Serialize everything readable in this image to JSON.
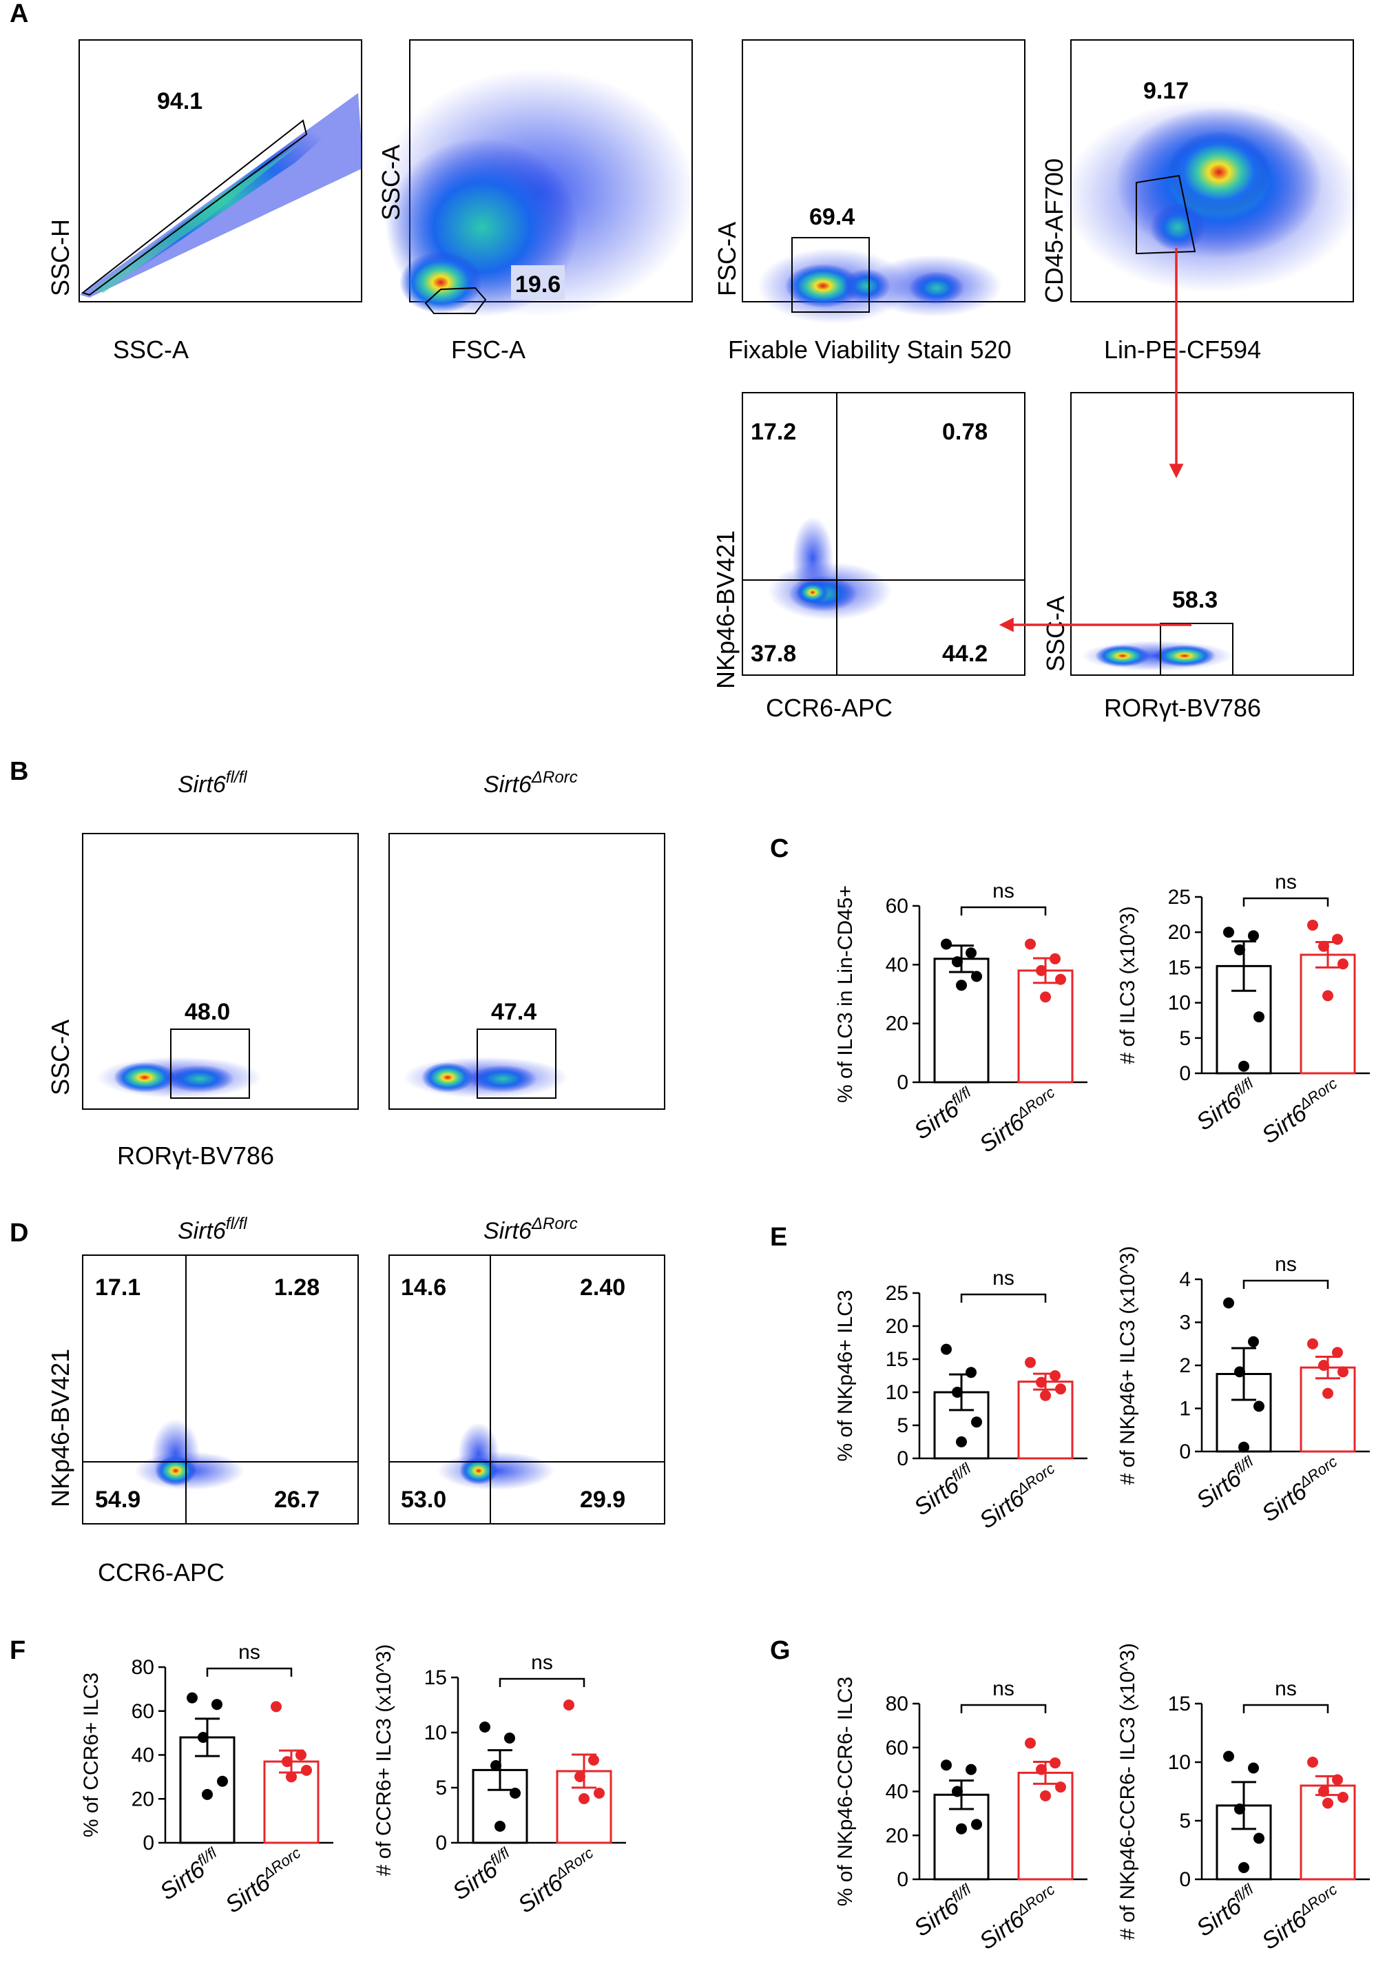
{
  "panel_letters": [
    "A",
    "B",
    "C",
    "D",
    "E",
    "F",
    "G"
  ],
  "groups": {
    "control": {
      "base": "Sirt6",
      "sup": "fl/fl",
      "color": "#000000"
    },
    "ko": {
      "base": "Sirt6",
      "sup": "ΔRorc",
      "color": "#e8262a"
    }
  },
  "gating": [
    {
      "id": "a1",
      "x_label": "SSC-A",
      "y_label": "SSC-H",
      "gates": [
        "94.1"
      ]
    },
    {
      "id": "a2",
      "x_label": "FSC-A",
      "y_label": "SSC-A",
      "gates": [
        "19.6"
      ]
    },
    {
      "id": "a3",
      "x_label": "Fixable Viability Stain 520",
      "y_label": "FSC-A",
      "gates": [
        "69.4"
      ]
    },
    {
      "id": "a4",
      "x_label": "Lin-PE-CF594",
      "y_label": "CD45-AF700",
      "gates": [
        "9.17"
      ]
    },
    {
      "id": "a5",
      "x_label": "CCR6-APC",
      "y_label": "NKp46-BV421",
      "gates": [
        "17.2",
        "0.78",
        "37.8",
        "44.2"
      ]
    },
    {
      "id": "a6",
      "x_label": "RORγt-BV786",
      "y_label": "SSC-A",
      "gates": [
        "58.3"
      ]
    },
    {
      "id": "b1",
      "x_label": "RORγt-BV786",
      "y_label": "SSC-A",
      "gates": [
        "48.0"
      ]
    },
    {
      "id": "b2",
      "gates": [
        "47.4"
      ]
    },
    {
      "id": "d1",
      "x_label": "CCR6-APC",
      "y_label": "NKp46-BV421",
      "gates": [
        "17.1",
        "1.28",
        "54.9",
        "26.7"
      ]
    },
    {
      "id": "d2",
      "gates": [
        "14.6",
        "2.40",
        "53.0",
        "29.9"
      ]
    }
  ],
  "chart_data": [
    {
      "id": "C1",
      "type": "bar",
      "title": "",
      "xlabel": "",
      "ylabel": "% of ILC3 in Lin-CD45+",
      "ylim": [
        0,
        60
      ],
      "yticks": [
        "0",
        "20",
        "40",
        "60"
      ],
      "comparison": "ns",
      "series": [
        {
          "name": "Sirt6 fl/fl",
          "mean": 42,
          "sem": 4.5,
          "points": [
            47,
            44,
            41,
            36,
            33
          ]
        },
        {
          "name": "Sirt6 ΔRorc",
          "mean": 38,
          "sem": 4.2,
          "points": [
            47,
            42,
            38,
            35,
            29
          ]
        }
      ]
    },
    {
      "id": "C2",
      "type": "bar",
      "title": "",
      "xlabel": "",
      "ylabel": "# of ILC3 (x10^3)",
      "ylim": [
        0,
        25
      ],
      "yticks": [
        "0",
        "5",
        "10",
        "15",
        "20",
        "25"
      ],
      "comparison": "ns",
      "series": [
        {
          "name": "Sirt6 fl/fl",
          "mean": 15.2,
          "sem": 3.5,
          "points": [
            20,
            19.5,
            17.5,
            8,
            1
          ]
        },
        {
          "name": "Sirt6 ΔRorc",
          "mean": 16.8,
          "sem": 1.8,
          "points": [
            21,
            19,
            18,
            15.5,
            11
          ]
        }
      ]
    },
    {
      "id": "E1",
      "type": "bar",
      "title": "",
      "xlabel": "",
      "ylabel": "% of NKp46+ ILC3",
      "ylim": [
        0,
        25
      ],
      "yticks": [
        "0",
        "5",
        "10",
        "15",
        "20",
        "25"
      ],
      "comparison": "ns",
      "series": [
        {
          "name": "Sirt6 fl/fl",
          "mean": 10,
          "sem": 2.7,
          "points": [
            16.5,
            13,
            10,
            5.5,
            2.5
          ]
        },
        {
          "name": "Sirt6 ΔRorc",
          "mean": 11.6,
          "sem": 1.2,
          "points": [
            14.5,
            12.5,
            11.5,
            10.5,
            9.5
          ]
        }
      ]
    },
    {
      "id": "E2",
      "type": "bar",
      "title": "",
      "xlabel": "",
      "ylabel": "# of NKp46+ ILC3 (x10^3)",
      "ylim": [
        0,
        4
      ],
      "yticks": [
        "0",
        "1",
        "2",
        "3",
        "4"
      ],
      "comparison": "ns",
      "series": [
        {
          "name": "Sirt6 fl/fl",
          "mean": 1.8,
          "sem": 0.6,
          "points": [
            3.45,
            2.55,
            1.85,
            1.05,
            0.1
          ]
        },
        {
          "name": "Sirt6 ΔRorc",
          "mean": 1.95,
          "sem": 0.25,
          "points": [
            2.5,
            2.3,
            2.0,
            1.85,
            1.35
          ]
        }
      ]
    },
    {
      "id": "F1",
      "type": "bar",
      "title": "",
      "xlabel": "",
      "ylabel": "% of CCR6+ ILC3",
      "ylim": [
        0,
        80
      ],
      "yticks": [
        "0",
        "20",
        "40",
        "60",
        "80"
      ],
      "comparison": "ns",
      "series": [
        {
          "name": "Sirt6 fl/fl",
          "mean": 48,
          "sem": 8.5,
          "points": [
            66,
            63,
            48,
            28,
            22
          ]
        },
        {
          "name": "Sirt6 ΔRorc",
          "mean": 37,
          "sem": 5,
          "points": [
            62,
            40,
            37,
            33,
            30
          ]
        }
      ]
    },
    {
      "id": "F2",
      "type": "bar",
      "title": "",
      "xlabel": "",
      "ylabel": "# of CCR6+ ILC3 (x10^3)",
      "ylim": [
        0,
        15
      ],
      "yticks": [
        "0",
        "5",
        "10",
        "15"
      ],
      "comparison": "ns",
      "series": [
        {
          "name": "Sirt6 fl/fl",
          "mean": 6.6,
          "sem": 1.8,
          "points": [
            10.5,
            9.5,
            7,
            4.5,
            1.5
          ]
        },
        {
          "name": "Sirt6 ΔRorc",
          "mean": 6.5,
          "sem": 1.5,
          "points": [
            12.5,
            7.5,
            6,
            4.5,
            4
          ]
        }
      ]
    },
    {
      "id": "G1",
      "type": "bar",
      "title": "",
      "xlabel": "",
      "ylabel": "% of NKp46-CCR6- ILC3",
      "ylim": [
        0,
        80
      ],
      "yticks": [
        "0",
        "20",
        "40",
        "60",
        "80"
      ],
      "comparison": "ns",
      "series": [
        {
          "name": "Sirt6 fl/fl",
          "mean": 38.5,
          "sem": 6.5,
          "points": [
            52,
            50,
            40,
            25,
            23
          ]
        },
        {
          "name": "Sirt6 ΔRorc",
          "mean": 48.5,
          "sem": 5,
          "points": [
            62,
            53,
            50,
            42,
            38
          ]
        }
      ]
    },
    {
      "id": "G2",
      "type": "bar",
      "title": "",
      "xlabel": "",
      "ylabel": "# of NKp46-CCR6- ILC3 (x10^3)",
      "ylim": [
        0,
        15
      ],
      "yticks": [
        "0",
        "5",
        "10",
        "15"
      ],
      "comparison": "ns",
      "series": [
        {
          "name": "Sirt6 fl/fl",
          "mean": 6.3,
          "sem": 2,
          "points": [
            10.5,
            9.5,
            6,
            3.5,
            1
          ]
        },
        {
          "name": "Sirt6 ΔRorc",
          "mean": 8,
          "sem": 0.8,
          "points": [
            10,
            8.5,
            7.5,
            7,
            6.5
          ]
        }
      ]
    }
  ]
}
